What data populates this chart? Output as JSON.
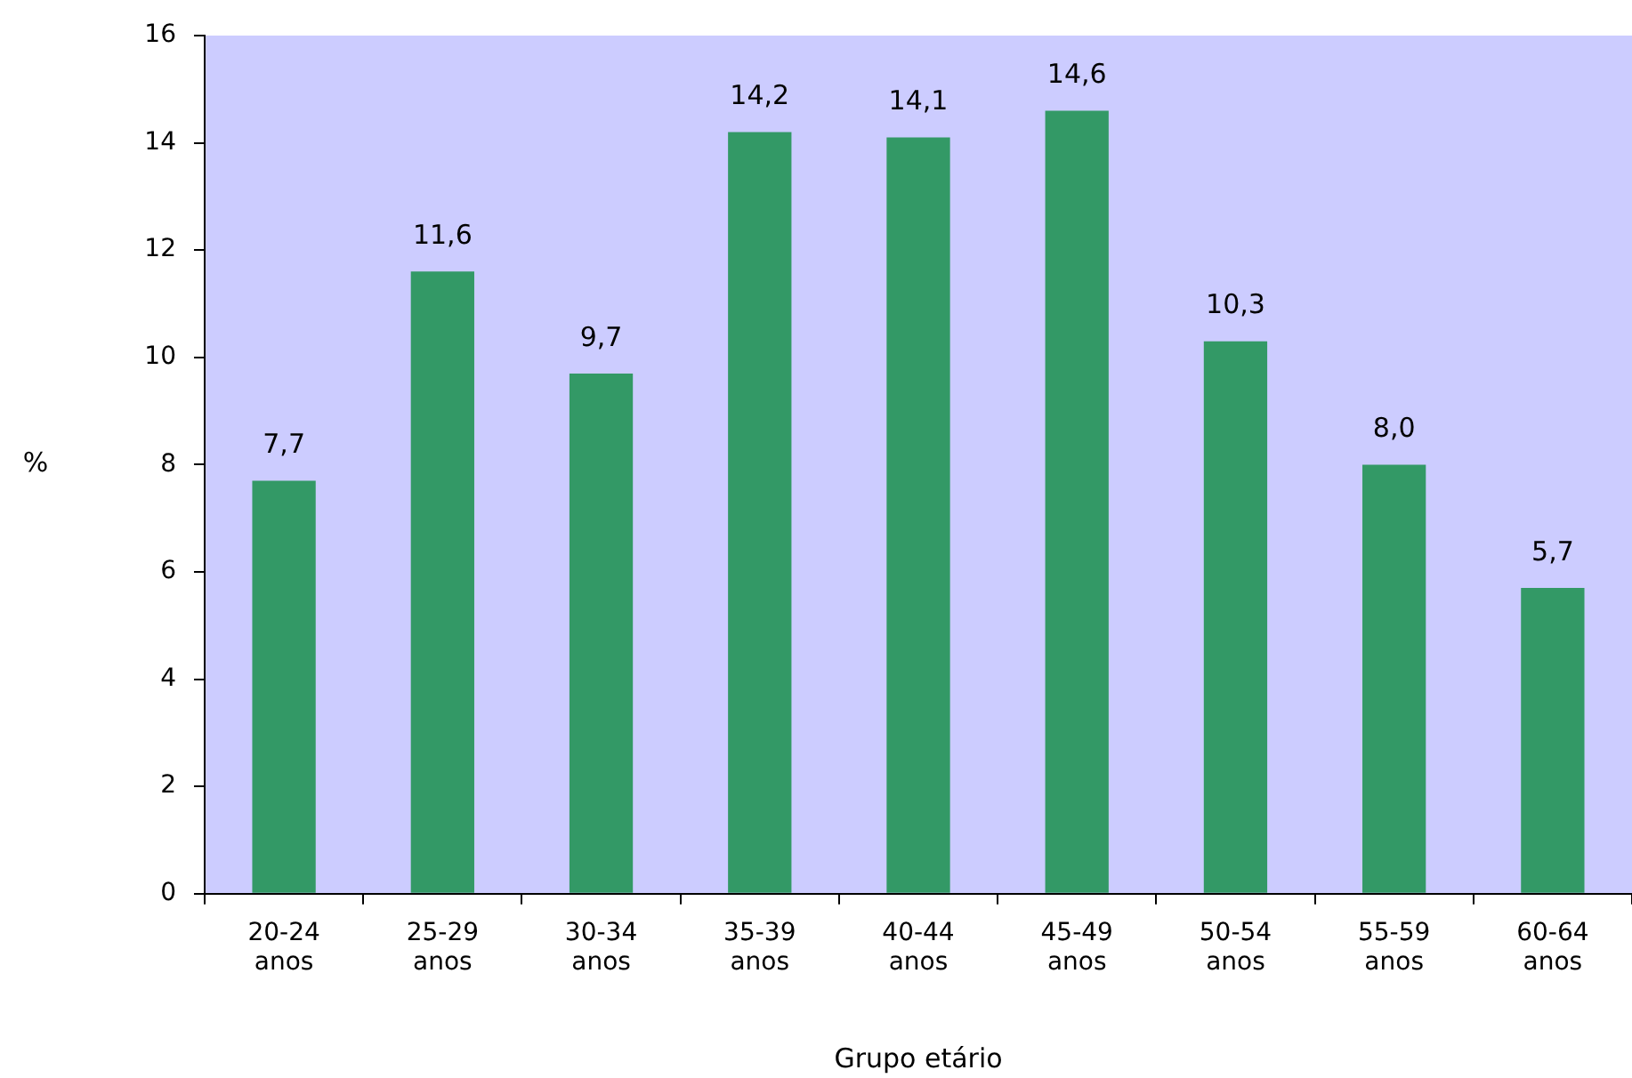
{
  "chart_data": {
    "type": "bar",
    "xlabel": "Grupo etário",
    "ylabel": "%",
    "categories": [
      "20-24 anos",
      "25-29 anos",
      "30-34 anos",
      "35-39 anos",
      "40-44 anos",
      "45-49 anos",
      "50-54 anos",
      "55-59 anos",
      "60-64 anos"
    ],
    "values": [
      7.7,
      11.6,
      9.7,
      14.2,
      14.1,
      14.6,
      10.3,
      8.0,
      5.7
    ],
    "value_labels": [
      "7,7",
      "11,6",
      "9,7",
      "14,2",
      "14,1",
      "14,6",
      "10,3",
      "8,0",
      "5,7"
    ],
    "color": "#339966",
    "ylim": [
      0,
      16
    ],
    "yticks": [
      0,
      2,
      4,
      6,
      8,
      10,
      12,
      14,
      16
    ],
    "grid": false,
    "legend": false
  }
}
